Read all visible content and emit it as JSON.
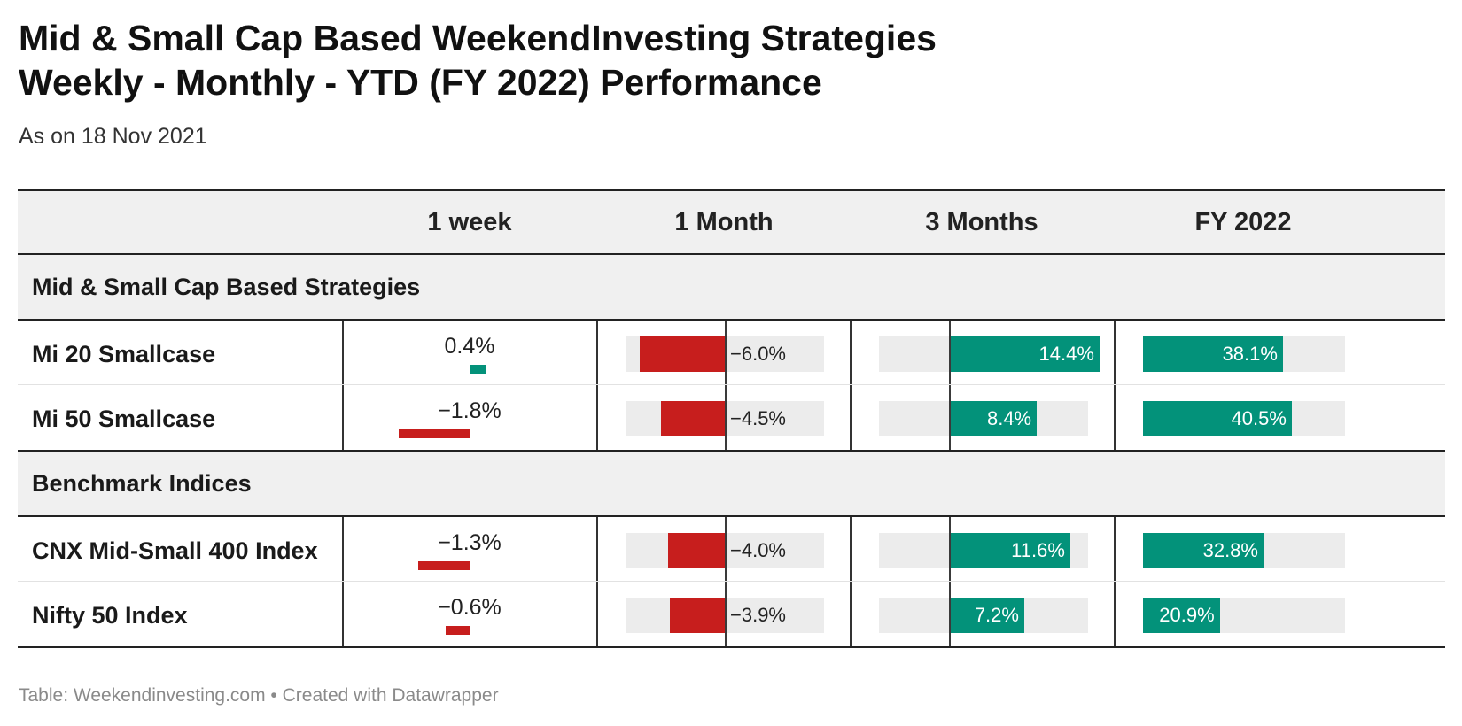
{
  "header": {
    "title_line1": "Mid & Small Cap Based WeekendInvesting Strategies",
    "title_line2": "Weekly - Monthly - YTD (FY 2022) Performance",
    "subtitle": "As on 18 Nov 2021"
  },
  "footer": {
    "text": "Table: Weekendinvesting.com • Created with Datawrapper"
  },
  "colors": {
    "negative": "#c71e1d",
    "positive": "#03927a",
    "track": "#ececec",
    "group_background": "#f0f0f0"
  },
  "chart_data": {
    "type": "table",
    "columns": [
      "",
      "1 week",
      "1 Month",
      "3 Months",
      "FY 2022"
    ],
    "groups": [
      {
        "label": "Mid & Small Cap Based Strategies",
        "rows": [
          {
            "name": "Mi 20 Smallcase",
            "values": [
              0.4,
              -6.0,
              14.4,
              38.1
            ],
            "labels": [
              "0.4%",
              "−6.0%",
              "14.4%",
              "38.1%"
            ]
          },
          {
            "name": "Mi 50 Smallcase",
            "values": [
              -1.8,
              -4.5,
              8.4,
              40.5
            ],
            "labels": [
              "−1.8%",
              "−4.5%",
              "8.4%",
              "40.5%"
            ]
          }
        ]
      },
      {
        "label": "Benchmark Indices",
        "rows": [
          {
            "name": "CNX Mid-Small 400 Index",
            "values": [
              -1.3,
              -4.0,
              11.6,
              32.8
            ],
            "labels": [
              "−1.3%",
              "−4.0%",
              "11.6%",
              "32.8%"
            ]
          },
          {
            "name": "Nifty 50 Index",
            "values": [
              -0.6,
              -3.9,
              7.2,
              20.9
            ],
            "labels": [
              "−0.6%",
              "−3.9%",
              "7.2%",
              "20.9%"
            ]
          }
        ]
      }
    ],
    "column_ranges": [
      [
        -1.8,
        0.4
      ],
      [
        -6.0,
        8.0
      ],
      [
        0,
        20.0
      ],
      [
        0,
        55.0
      ]
    ]
  }
}
